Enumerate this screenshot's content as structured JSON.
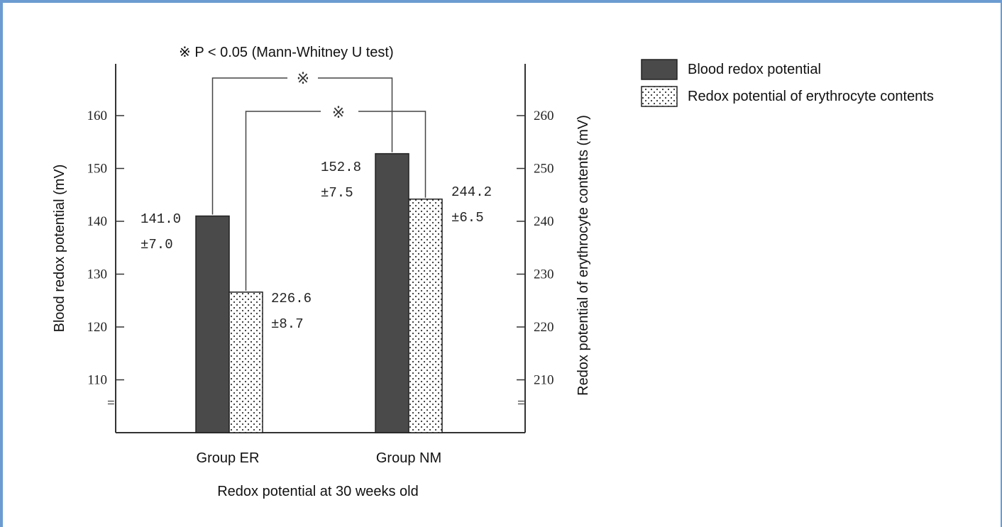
{
  "chart_data": {
    "type": "bar",
    "title": "",
    "note": "※ P < 0.05 (Mann-Whitney U test)",
    "xlabel": "Redox potential at 30 weeks old",
    "ylabel_left": "Blood redox potential (mV)",
    "ylabel_right": "Redox potential of erythrocyte contents (mV)",
    "categories": [
      "Group ER",
      "Group NM"
    ],
    "ylim_left": [
      100,
      170
    ],
    "ylim_right": [
      200,
      270
    ],
    "yticks_left": [
      110,
      120,
      130,
      140,
      150,
      160
    ],
    "yticks_right": [
      210,
      220,
      230,
      240,
      250,
      260
    ],
    "series": [
      {
        "name": "Blood redox potential",
        "axis": "left",
        "color": "#4a4a4a",
        "pattern": "solid",
        "values": [
          141.0,
          152.8
        ],
        "labels": [
          "141.0",
          "152.8"
        ],
        "sd_labels": [
          "±7.0",
          "±7.5"
        ]
      },
      {
        "name": "Redox potential of erythrocyte contents",
        "axis": "right",
        "color": "#ffffff",
        "pattern": "dotted",
        "values": [
          226.6,
          244.2
        ],
        "labels": [
          "226.6",
          "244.2"
        ],
        "sd_labels": [
          "±8.7",
          "±6.5"
        ]
      }
    ],
    "significance_marker": "※",
    "legend_position": "top-right",
    "axis_break_symbol": "="
  }
}
